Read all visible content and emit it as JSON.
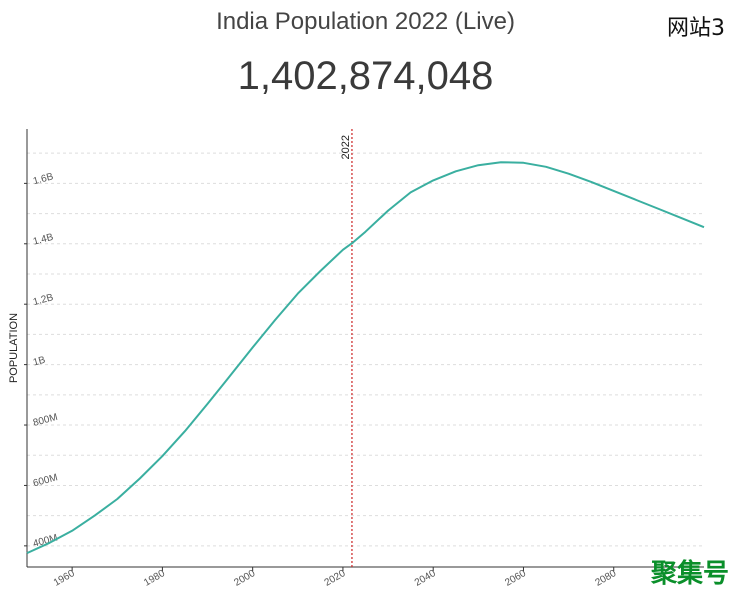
{
  "header": {
    "title": "India Population 2022 (Live)",
    "site_tag": "网站3",
    "counter": "1,402,874,048"
  },
  "watermark": "聚集号",
  "chart_data": {
    "type": "line",
    "ylabel": "POPULATION",
    "xlim": [
      1950,
      2100
    ],
    "ylim": [
      330000000,
      1780000000
    ],
    "x_ticks": [
      1960,
      1980,
      2000,
      2020,
      2040,
      2060,
      2080
    ],
    "y_ticks": [
      {
        "value": 400000000,
        "label": "400M"
      },
      {
        "value": 600000000,
        "label": "600M"
      },
      {
        "value": 800000000,
        "label": "800M"
      },
      {
        "value": 1000000000,
        "label": "1B"
      },
      {
        "value": 1200000000,
        "label": "1.2B"
      },
      {
        "value": 1400000000,
        "label": "1.4B"
      },
      {
        "value": 1600000000,
        "label": "1.6B"
      }
    ],
    "marker": {
      "x": 2022,
      "label": "2022",
      "color": "#cc2222"
    },
    "grid": true,
    "series": [
      {
        "color": "#3aafa0",
        "x": [
          1950,
          1955,
          1960,
          1965,
          1970,
          1975,
          1980,
          1985,
          1990,
          1995,
          2000,
          2005,
          2010,
          2015,
          2020,
          2022,
          2025,
          2030,
          2035,
          2040,
          2045,
          2050,
          2055,
          2060,
          2065,
          2070,
          2075,
          2080,
          2085,
          2090,
          2095,
          2100
        ],
        "values": [
          376000000,
          410000000,
          450000000,
          500000000,
          555000000,
          623000000,
          697000000,
          780000000,
          870000000,
          963000000,
          1057000000,
          1148000000,
          1235000000,
          1310000000,
          1380000000,
          1402000000,
          1440000000,
          1510000000,
          1570000000,
          1610000000,
          1640000000,
          1660000000,
          1670000000,
          1668000000,
          1655000000,
          1632000000,
          1605000000,
          1575000000,
          1545000000,
          1515000000,
          1485000000,
          1455000000
        ]
      }
    ]
  }
}
